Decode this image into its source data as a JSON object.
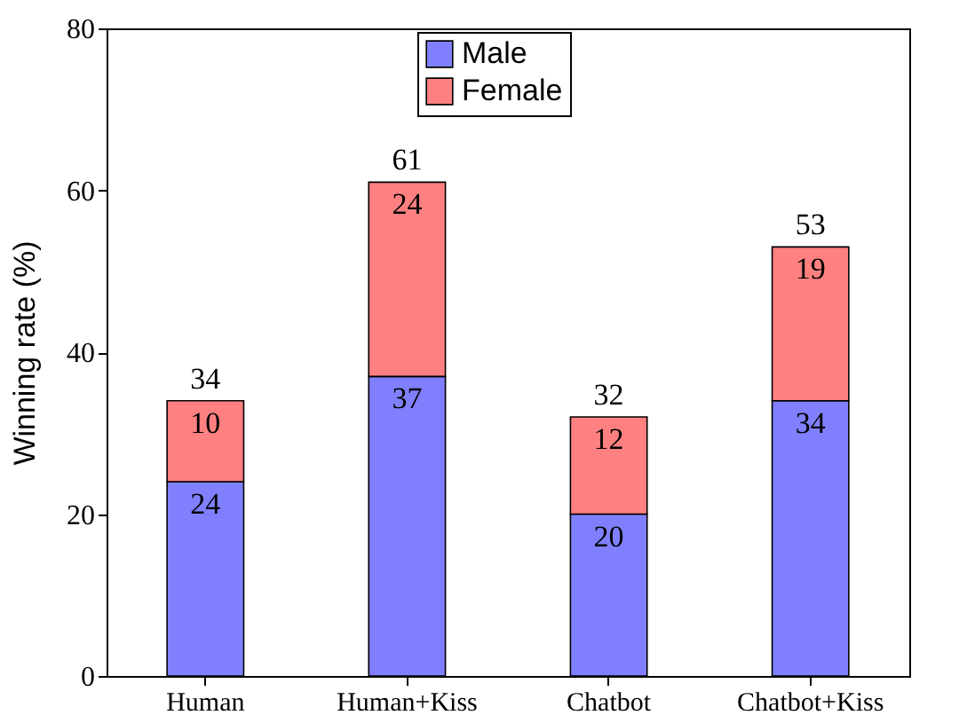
{
  "chart_data": {
    "type": "bar",
    "stacked": true,
    "ylabel": "Winning rate (%)",
    "categories": [
      "Human",
      "Human+Kiss",
      "Chatbot",
      "Chatbot+Kiss"
    ],
    "series": [
      {
        "name": "Male",
        "color": "#8080ff",
        "values": [
          24,
          37,
          20,
          34
        ]
      },
      {
        "name": "Female",
        "color": "#ff8080",
        "values": [
          10,
          24,
          12,
          19
        ]
      }
    ],
    "ylim": [
      0,
      80
    ],
    "yticks": [
      0,
      20,
      40,
      60,
      80
    ],
    "grid": false,
    "legend": "top",
    "data_labels": true,
    "totals": [
      "34",
      "61",
      "32",
      "53"
    ]
  }
}
